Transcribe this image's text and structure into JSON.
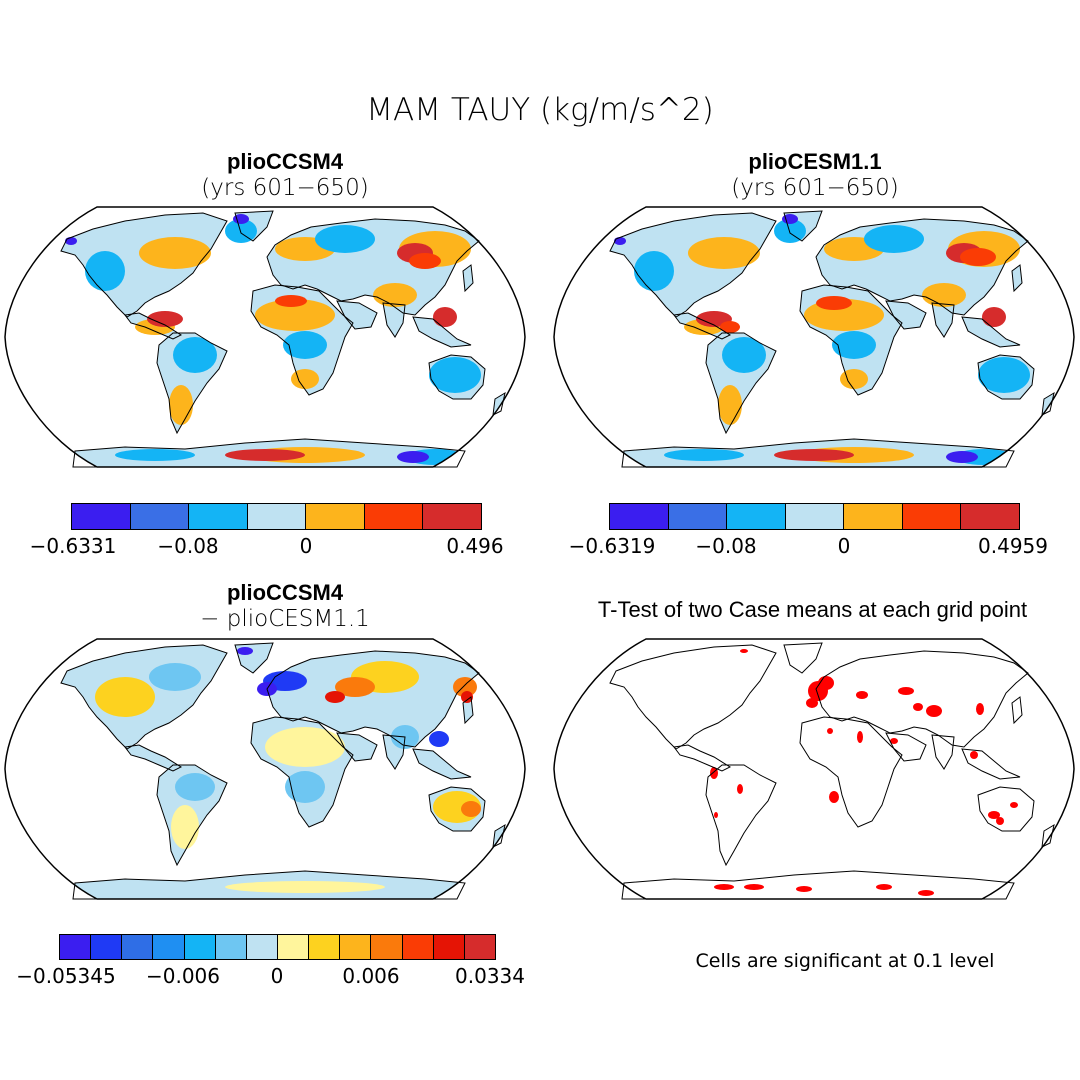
{
  "figure_title": "MAM TAUY (kg/m/s^2)",
  "panels": {
    "top_left": {
      "title": "plioCCSM4",
      "subtitle": "(yrs 601−650)"
    },
    "top_right": {
      "title": "plioCESM1.1",
      "subtitle": "(yrs 601−650)"
    },
    "bottom_left": {
      "title": "plioCCSM4",
      "subtitle": "− plioCESM1.1"
    },
    "bottom_right": {
      "title": "T-Test of two Case means at each grid point",
      "note": "Cells are significant at 0.1 level"
    }
  },
  "colorbars": {
    "top_left": {
      "colors": [
        "#3b1ef0",
        "#3a6fe6",
        "#14b4f5",
        "#bfe2f2",
        "#fdb41c",
        "#fa3c05",
        "#d62c2c"
      ],
      "labels": [
        "−0.6331",
        "−0.08",
        "0",
        "0.496"
      ]
    },
    "top_right": {
      "colors": [
        "#3b1ef0",
        "#3a6fe6",
        "#14b4f5",
        "#bfe2f2",
        "#fdb41c",
        "#fa3c05",
        "#d62c2c"
      ],
      "labels": [
        "−0.6319",
        "−0.08",
        "0",
        "0.4959"
      ]
    },
    "bottom_left": {
      "colors": [
        "#3b1ef0",
        "#1f3af5",
        "#2f6ee6",
        "#1f8ff2",
        "#14b4f5",
        "#6ec6f2",
        "#bfe2f2",
        "#fff59c",
        "#fdd21f",
        "#fdb41c",
        "#fa7a0c",
        "#fa3c05",
        "#e51405",
        "#d62c2c"
      ],
      "labels": [
        "−0.05345",
        "−0.006",
        "0",
        "0.006",
        "0.0334"
      ]
    }
  },
  "colors": {
    "significant": "#ff0000",
    "ocean": "#ffffff",
    "land_outline": "#000000"
  }
}
